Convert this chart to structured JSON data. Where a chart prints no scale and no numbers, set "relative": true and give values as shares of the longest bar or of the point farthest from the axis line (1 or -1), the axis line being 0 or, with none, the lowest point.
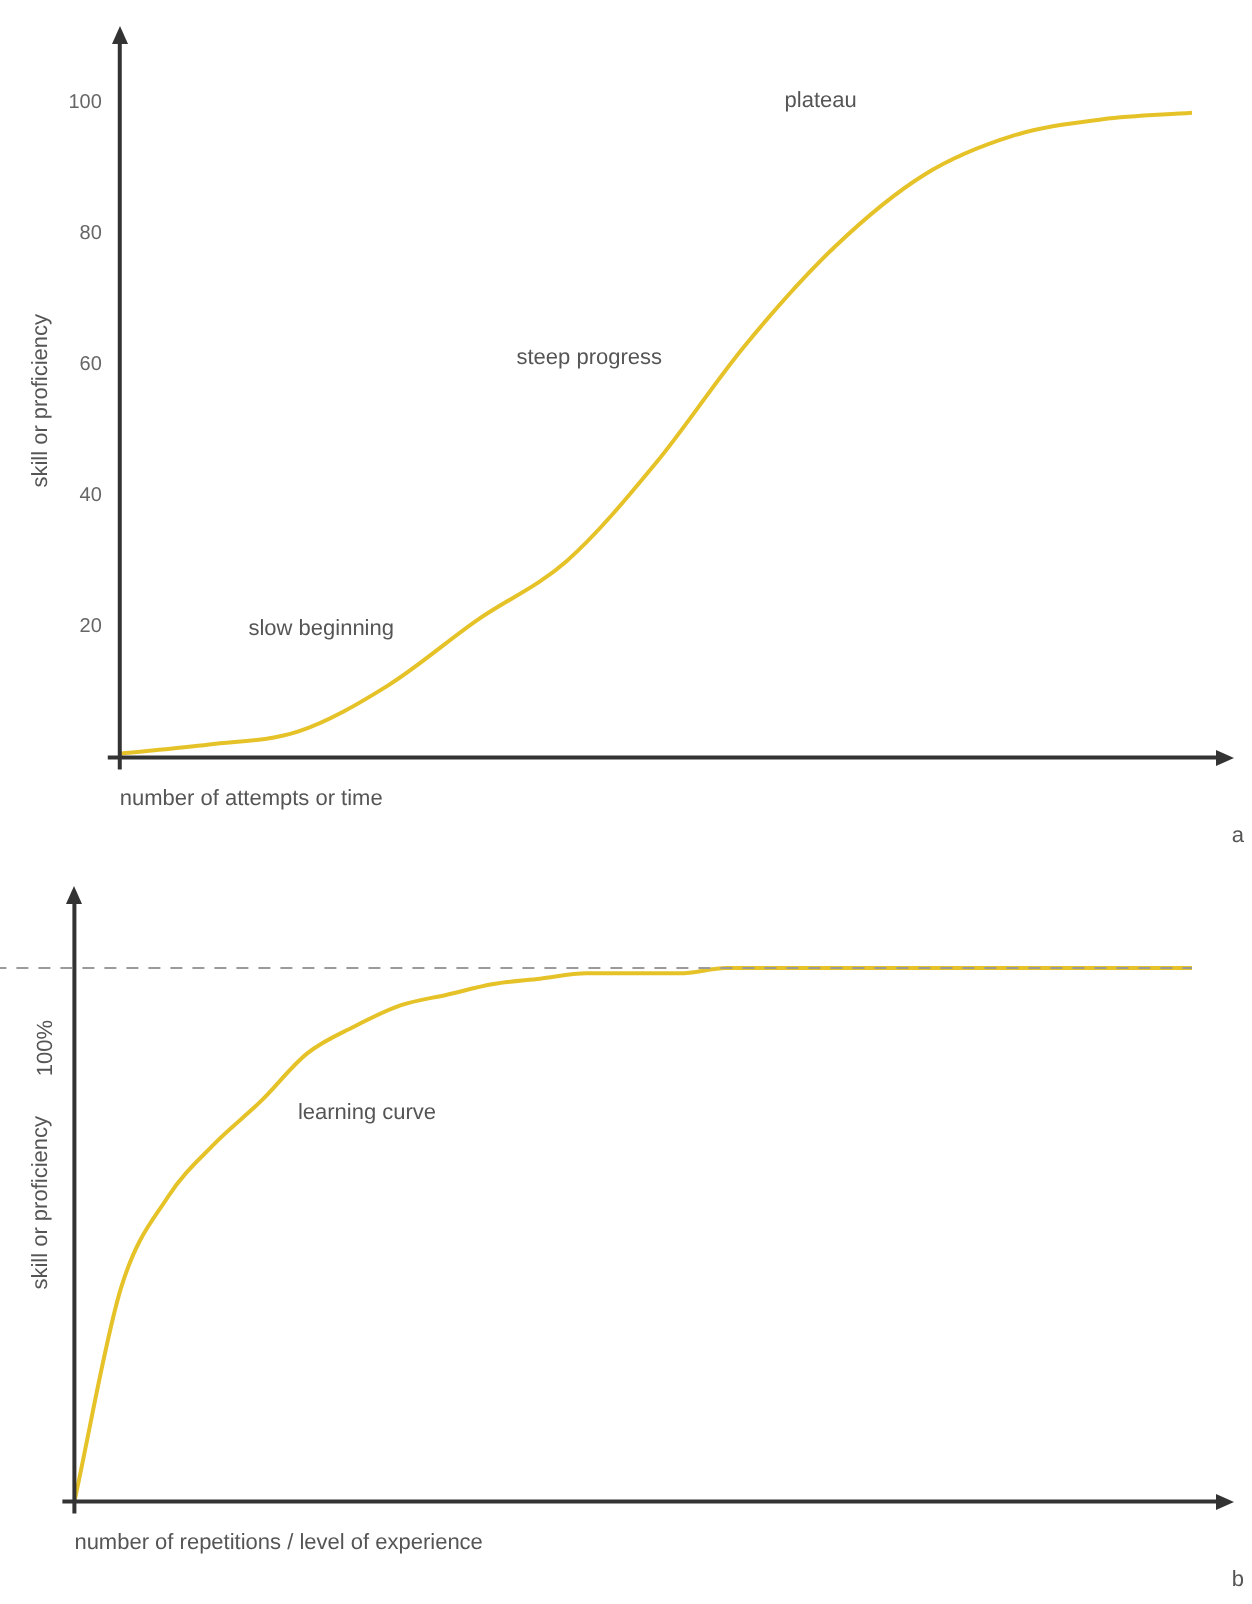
{
  "chart_data": [
    {
      "type": "line",
      "xlabel": "number of attempts or time",
      "ylabel": "skill or proficiency",
      "categories": [
        null,
        null,
        null,
        null,
        null,
        null,
        null,
        null,
        null,
        null,
        null,
        null,
        null
      ],
      "series": [
        {
          "color": "#e6c229",
          "values": [
            0.6,
            2,
            4,
            11,
            21,
            30,
            45,
            63,
            78,
            89,
            95,
            97.5,
            98.5
          ]
        }
      ],
      "ylim": [
        0,
        109
      ],
      "yticks": [
        20,
        40,
        60,
        80,
        100
      ],
      "grid": false,
      "marker": "none",
      "legend": false,
      "annotations": [
        "slow beginning",
        "steep progress",
        "plateau",
        "a"
      ]
    },
    {
      "type": "line",
      "xlabel": "number of repetitions / level of experience",
      "ylabel": "skill or proficiency",
      "relative": true,
      "categories": [
        null,
        null,
        null,
        null,
        null,
        null,
        null,
        null,
        null,
        null,
        null,
        null,
        null,
        null,
        null,
        null,
        null,
        null,
        null,
        null,
        null,
        null,
        null,
        null,
        null
      ],
      "series": [
        {
          "color": "#e6c229",
          "values": [
            0,
            0.4,
            0.57,
            0.67,
            0.75,
            0.84,
            0.89,
            0.93,
            0.95,
            0.97,
            0.98,
            0.99,
            0.99,
            0.99,
            1,
            1,
            1,
            1,
            1,
            1,
            1,
            1,
            1,
            1,
            1
          ]
        }
      ],
      "ref_lines": [
        {
          "axis": "y",
          "value": 1,
          "label": "100%",
          "color": "#9a9a9a",
          "line_style": "dashed"
        }
      ],
      "grid": false,
      "marker": "none",
      "legend": false,
      "annotations": [
        "learning curve",
        "b"
      ]
    }
  ]
}
